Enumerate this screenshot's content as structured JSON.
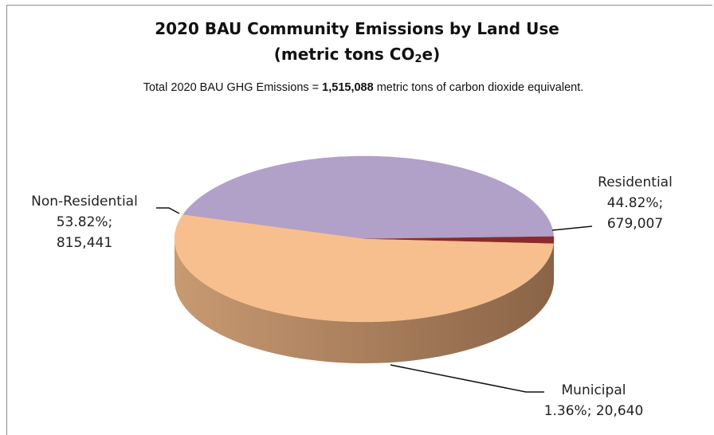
{
  "title": {
    "line1": "2020 BAU Community Emissions by Land Use",
    "line2_pre": "(metric tons CO",
    "line2_sub": "2",
    "line2_post": "e)"
  },
  "subtitle": {
    "pre": "Total 2020 BAU GHG Emissions = ",
    "total": "1,515,088",
    "post": " metric tons of carbon dioxide equivalent."
  },
  "chart_data": {
    "type": "pie",
    "style": "3d",
    "categories": [
      "Residential",
      "Municipal",
      "Non-Residential"
    ],
    "values": [
      679007,
      20640,
      815441
    ],
    "percents": [
      44.82,
      1.36,
      53.82
    ],
    "labels": [
      [
        "Residential",
        "44.82%;",
        "679,007"
      ],
      [
        "Municipal",
        "1.36%; 20,640"
      ],
      [
        "Non-Residential",
        "53.82%;",
        "815,441"
      ]
    ],
    "colors": {
      "top": [
        "#b1a0c7",
        "#8b2a2a",
        "#f8bf8e"
      ],
      "side": [
        "#4f4758",
        "#4a1717",
        "#a57a59"
      ]
    },
    "total": 1515088
  }
}
